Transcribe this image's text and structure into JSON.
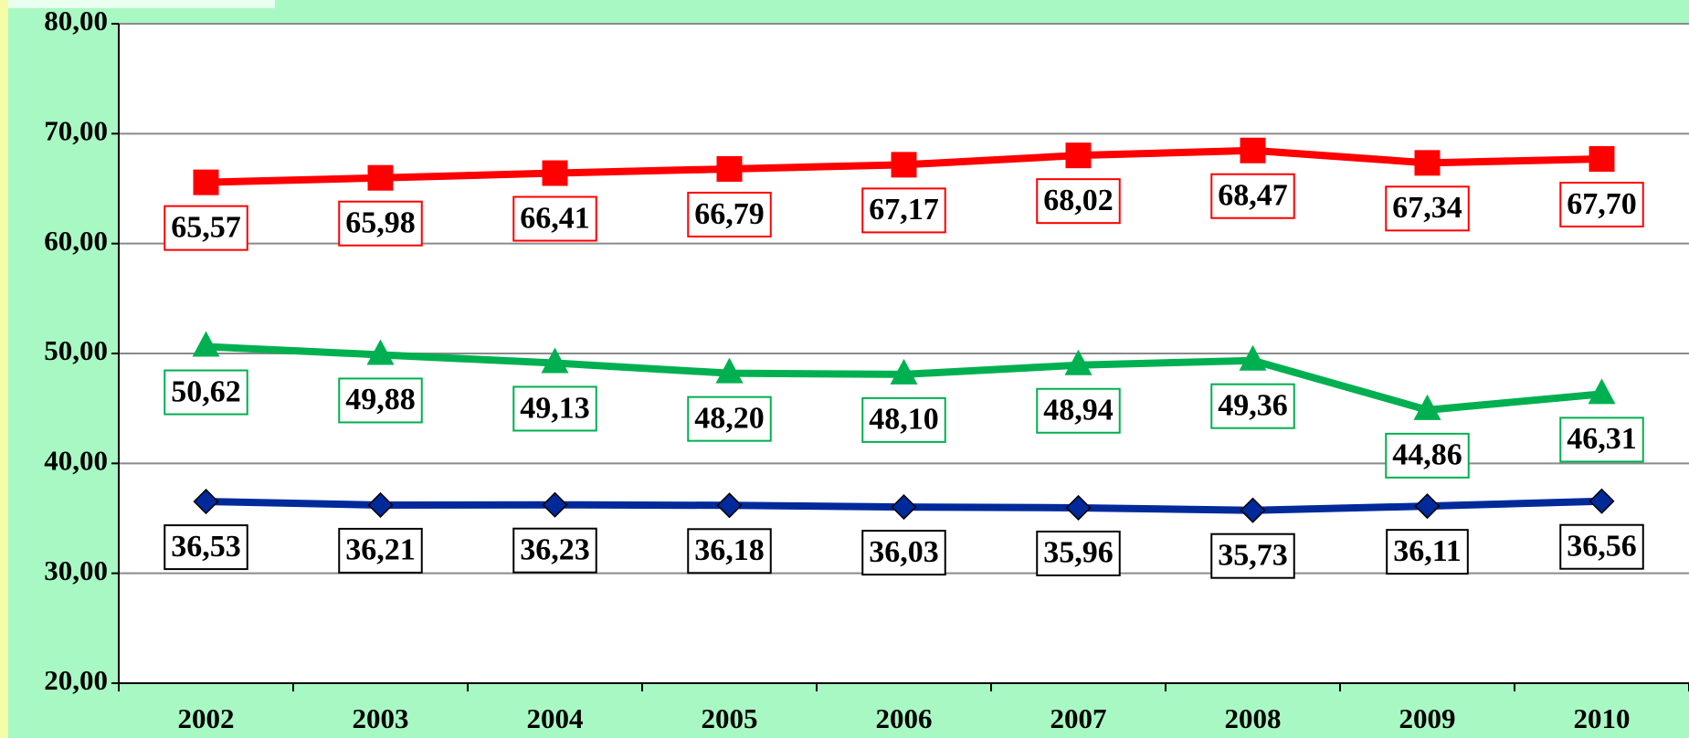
{
  "chart_data": {
    "type": "line",
    "categories": [
      "2002",
      "2003",
      "2004",
      "2005",
      "2006",
      "2007",
      "2008",
      "2009",
      "2010"
    ],
    "series": [
      {
        "color": "#ff0000",
        "marker": "square",
        "values": [
          65.57,
          65.98,
          66.41,
          66.79,
          67.17,
          68.02,
          68.47,
          67.34,
          67.7
        ],
        "value_labels": [
          "65,57",
          "65,98",
          "66,41",
          "66,79",
          "67,17",
          "68,02",
          "68,47",
          "67,34",
          "67,70"
        ]
      },
      {
        "color": "#00b050",
        "marker": "triangle",
        "values": [
          50.62,
          49.88,
          49.13,
          48.2,
          48.1,
          48.94,
          49.36,
          44.86,
          46.31
        ],
        "value_labels": [
          "50,62",
          "49,88",
          "49,13",
          "48,20",
          "48,10",
          "48,94",
          "49,36",
          "44,86",
          "46,31"
        ]
      },
      {
        "color": "#002a9a",
        "marker": "diamond",
        "values": [
          36.53,
          36.21,
          36.23,
          36.18,
          36.03,
          35.96,
          35.73,
          36.11,
          36.56
        ],
        "value_labels": [
          "36,53",
          "36,21",
          "36,23",
          "36,18",
          "36,03",
          "35,96",
          "35,73",
          "36,11",
          "36,56"
        ]
      }
    ],
    "ylim": [
      20,
      80
    ],
    "yticks": [
      {
        "value": 20,
        "label": "20,00"
      },
      {
        "value": 30,
        "label": "30,00"
      },
      {
        "value": 40,
        "label": "40,00"
      },
      {
        "value": 50,
        "label": "50,00"
      },
      {
        "value": 60,
        "label": "60,00"
      },
      {
        "value": 70,
        "label": "70,00"
      },
      {
        "value": 80,
        "label": "80,00"
      }
    ],
    "grid": true
  }
}
